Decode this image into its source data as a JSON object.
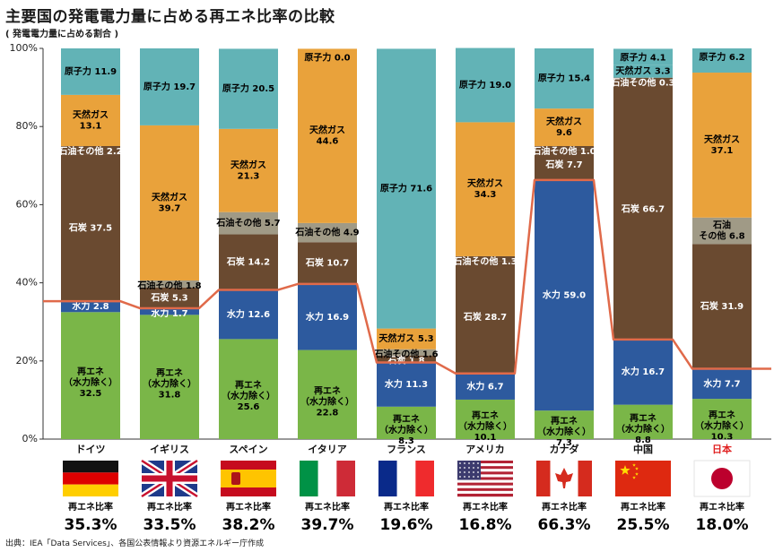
{
  "title": "主要国の発電電力量に占める再エネ比率の比較",
  "subtitle": "( 発電電力量に占める割合 )",
  "source": "出典：IEA「Data Services」、各国公表情報より資源エネルギー庁作成",
  "colors": {
    "renewable": "#7ab648",
    "hydro": "#2d5a9e",
    "coal": "#6a4a30",
    "oil": "#a09a86",
    "gas": "#e9a23b",
    "nuclear": "#62b3b6",
    "line": "#e06a4a",
    "japan": "#e02020"
  },
  "chart_data": {
    "type": "bar",
    "stacked": true,
    "ylim": [
      0,
      100
    ],
    "ytick_labels": [
      "0%",
      "20%",
      "40%",
      "60%",
      "80%",
      "100%"
    ],
    "grid": false,
    "categories": [
      "ドイツ",
      "イギリス",
      "スペイン",
      "イタリア",
      "フランス",
      "アメリカ",
      "カナダ",
      "中国",
      "日本"
    ],
    "flags": [
      "germany",
      "uk",
      "spain",
      "italy",
      "france",
      "usa",
      "canada",
      "china",
      "japan"
    ],
    "rate_label": "再エネ比率",
    "renewable_rates": [
      "35.3%",
      "33.5%",
      "38.2%",
      "39.7%",
      "19.6%",
      "16.8%",
      "66.3%",
      "25.5%",
      "18.0%"
    ],
    "renewable_rate_values": [
      35.3,
      33.5,
      38.2,
      39.7,
      19.6,
      16.8,
      66.3,
      25.5,
      18.0
    ],
    "series_order": [
      "renewable",
      "hydro",
      "coal",
      "oil",
      "gas",
      "nuclear"
    ],
    "bars": [
      {
        "name": "ドイツ",
        "segments": [
          {
            "type": "renewable",
            "value": 32.5,
            "label": [
              "再エネ",
              "（水力除く）",
              "32.5"
            ]
          },
          {
            "type": "hydro",
            "value": 2.8,
            "label": [
              "水力 2.8"
            ]
          },
          {
            "type": "coal",
            "value": 37.5,
            "label": [
              "石炭 37.5"
            ]
          },
          {
            "type": "oil",
            "value": 2.2,
            "label": [
              "石油その他 2.2"
            ],
            "fill": "coal"
          },
          {
            "type": "gas",
            "value": 13.1,
            "label": [
              "天然ガス",
              "13.1"
            ]
          },
          {
            "type": "nuclear",
            "value": 11.9,
            "label": [
              "原子力 11.9"
            ]
          }
        ]
      },
      {
        "name": "イギリス",
        "segments": [
          {
            "type": "renewable",
            "value": 31.8,
            "label": [
              "再エネ",
              "（水力除く）",
              "31.8"
            ]
          },
          {
            "type": "hydro",
            "value": 1.7,
            "label": [
              "水力 1.7"
            ]
          },
          {
            "type": "coal",
            "value": 5.3,
            "label": [
              "石炭 5.3"
            ]
          },
          {
            "type": "oil",
            "value": 1.8,
            "label": [
              "石油その他 1.8"
            ]
          },
          {
            "type": "gas",
            "value": 39.7,
            "label": [
              "天然ガス",
              "39.7"
            ]
          },
          {
            "type": "nuclear",
            "value": 19.7,
            "label": [
              "原子力 19.7"
            ]
          }
        ]
      },
      {
        "name": "スペイン",
        "segments": [
          {
            "type": "renewable",
            "value": 25.6,
            "label": [
              "再エネ",
              "（水力除く）",
              "25.6"
            ]
          },
          {
            "type": "hydro",
            "value": 12.6,
            "label": [
              "水力 12.6"
            ]
          },
          {
            "type": "coal",
            "value": 14.2,
            "label": [
              "石炭 14.2"
            ]
          },
          {
            "type": "oil",
            "value": 5.7,
            "label": [
              "石油その他 5.7"
            ]
          },
          {
            "type": "gas",
            "value": 21.3,
            "label": [
              "天然ガス",
              "21.3"
            ]
          },
          {
            "type": "nuclear",
            "value": 20.5,
            "label": [
              "原子力 20.5"
            ]
          }
        ]
      },
      {
        "name": "イタリア",
        "segments": [
          {
            "type": "renewable",
            "value": 22.8,
            "label": [
              "再エネ",
              "（水力除く）",
              "22.8"
            ]
          },
          {
            "type": "hydro",
            "value": 16.9,
            "label": [
              "水力 16.9"
            ]
          },
          {
            "type": "coal",
            "value": 10.7,
            "label": [
              "石炭 10.7"
            ]
          },
          {
            "type": "oil",
            "value": 4.9,
            "label": [
              "石油その他 4.9"
            ]
          },
          {
            "type": "gas",
            "value": 44.6,
            "label": [
              "天然ガス",
              "44.6"
            ]
          },
          {
            "type": "nuclear",
            "value": 0.0,
            "label": [
              "原子力 0.0"
            ]
          }
        ]
      },
      {
        "name": "フランス",
        "segments": [
          {
            "type": "renewable",
            "value": 8.3,
            "label": [
              "再エネ",
              "（水力除く）",
              "8.3"
            ]
          },
          {
            "type": "hydro",
            "value": 11.3,
            "label": [
              "水力 11.3"
            ]
          },
          {
            "type": "coal",
            "value": 1.8,
            "label": [
              "石炭 1.8"
            ]
          },
          {
            "type": "oil",
            "value": 1.6,
            "label": [
              "石油その他 1.6"
            ]
          },
          {
            "type": "gas",
            "value": 5.3,
            "label": [
              "天然ガス 5.3"
            ]
          },
          {
            "type": "nuclear",
            "value": 71.6,
            "label": [
              "原子力 71.6"
            ]
          }
        ]
      },
      {
        "name": "アメリカ",
        "segments": [
          {
            "type": "renewable",
            "value": 10.1,
            "label": [
              "再エネ",
              "（水力除く）",
              "10.1"
            ]
          },
          {
            "type": "hydro",
            "value": 6.7,
            "label": [
              "水力 6.7"
            ]
          },
          {
            "type": "coal",
            "value": 28.7,
            "label": [
              "石炭 28.7"
            ]
          },
          {
            "type": "oil",
            "value": 1.3,
            "label": [
              "石油その他 1.3"
            ],
            "fill": "coal"
          },
          {
            "type": "gas",
            "value": 34.3,
            "label": [
              "天然ガス",
              "34.3"
            ]
          },
          {
            "type": "nuclear",
            "value": 19.0,
            "label": [
              "原子力 19.0"
            ]
          }
        ]
      },
      {
        "name": "カナダ",
        "segments": [
          {
            "type": "renewable",
            "value": 7.3,
            "label": [
              "再エネ",
              "（水力除く）",
              "7.3"
            ]
          },
          {
            "type": "hydro",
            "value": 59.0,
            "label": [
              "水力 59.0"
            ]
          },
          {
            "type": "coal",
            "value": 7.7,
            "label": [
              "石炭 7.7"
            ]
          },
          {
            "type": "oil",
            "value": 1.0,
            "label": [
              "石油その他 1.0"
            ],
            "fill": "coal"
          },
          {
            "type": "gas",
            "value": 9.6,
            "label": [
              "天然ガス",
              "9.6"
            ]
          },
          {
            "type": "nuclear",
            "value": 15.4,
            "label": [
              "原子力 15.4"
            ]
          }
        ]
      },
      {
        "name": "中国",
        "segments": [
          {
            "type": "renewable",
            "value": 8.8,
            "label": [
              "再エネ",
              "（水力除く）",
              "8.8"
            ]
          },
          {
            "type": "hydro",
            "value": 16.7,
            "label": [
              "水力 16.7"
            ]
          },
          {
            "type": "coal",
            "value": 66.7,
            "label": [
              "石炭 66.7"
            ]
          },
          {
            "type": "oil",
            "value": 0.3,
            "label": [
              "石油その他 0.3"
            ],
            "fill": "coal"
          },
          {
            "type": "gas",
            "value": 3.3,
            "label": [
              "天然ガス 3.3"
            ],
            "fill": "nuclear"
          },
          {
            "type": "nuclear",
            "value": 4.1,
            "label": [
              "原子力 4.1"
            ]
          }
        ]
      },
      {
        "name": "日本",
        "segments": [
          {
            "type": "renewable",
            "value": 10.3,
            "label": [
              "再エネ",
              "（水力除く）",
              "10.3"
            ]
          },
          {
            "type": "hydro",
            "value": 7.7,
            "label": [
              "水力 7.7"
            ]
          },
          {
            "type": "coal",
            "value": 31.9,
            "label": [
              "石炭 31.9"
            ]
          },
          {
            "type": "oil",
            "value": 6.8,
            "label": [
              "石油",
              "その他 6.8"
            ]
          },
          {
            "type": "gas",
            "value": 37.1,
            "label": [
              "天然ガス",
              "37.1"
            ]
          },
          {
            "type": "nuclear",
            "value": 6.2,
            "label": [
              "原子力 6.2"
            ]
          }
        ]
      }
    ]
  }
}
